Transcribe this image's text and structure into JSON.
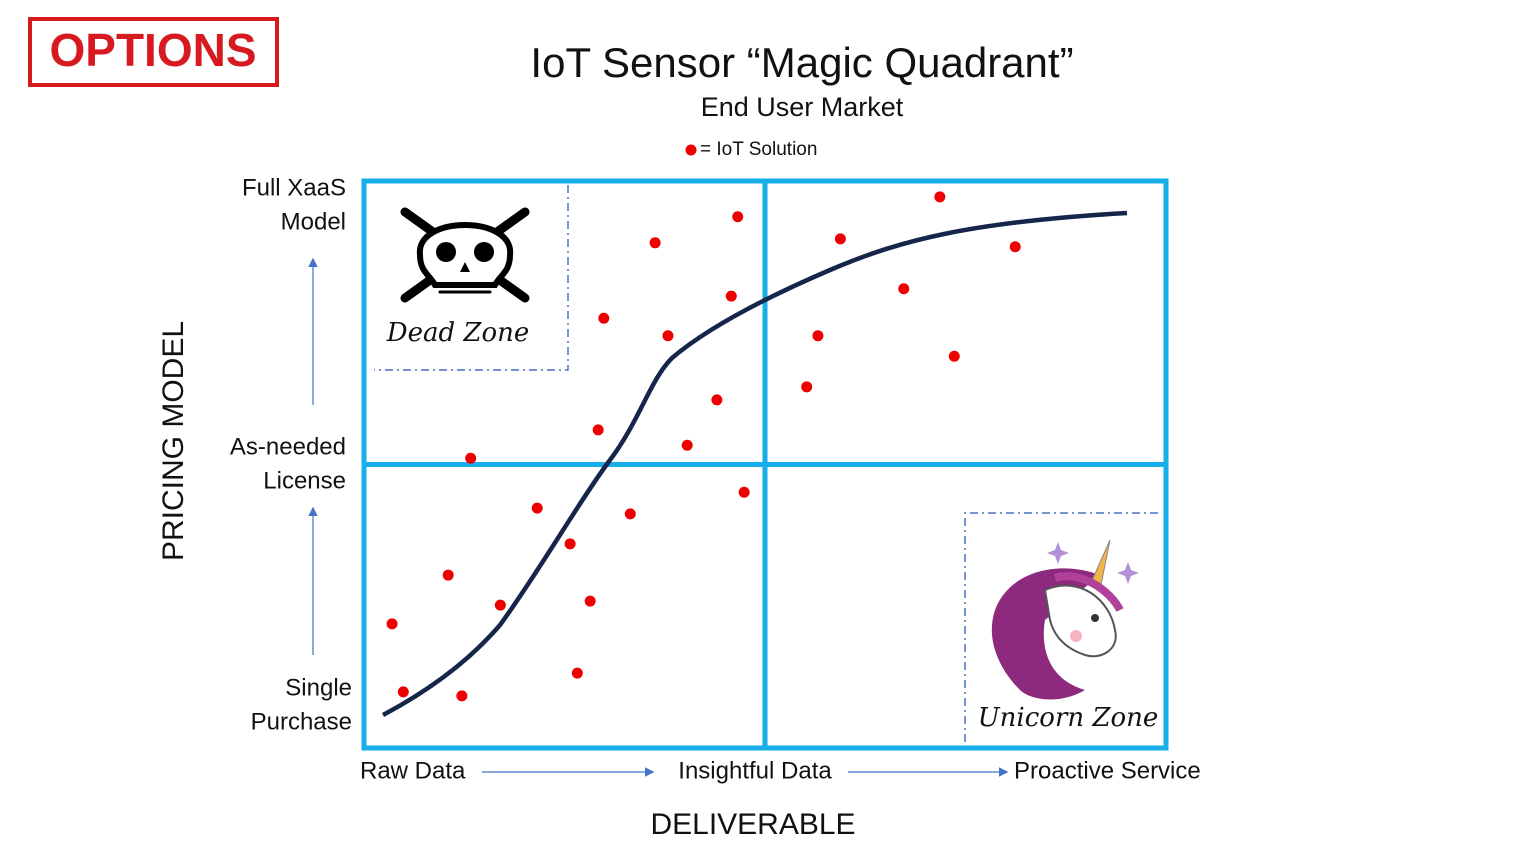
{
  "logo": "OPTIONS",
  "chart_data": {
    "type": "scatter",
    "title": "IoT Sensor “Magic Quadrant”",
    "subtitle": "End User Market",
    "x_label": "DELIVERABLE",
    "y_label": "PRICING MODEL",
    "x_categories": [
      "Raw Data",
      "Insightful Data",
      "Proactive Service"
    ],
    "y_categories": [
      [
        "Single",
        "Purchase"
      ],
      [
        "As-needed",
        "License"
      ],
      [
        "Full XaaS",
        "Model"
      ]
    ],
    "zones": [
      "Dead Zone",
      "Unicorn Zone"
    ],
    "xlim": [
      0,
      100
    ],
    "ylim": [
      0,
      100
    ],
    "series": [
      {
        "name": "= IoT Solution",
        "color": "#ee0000",
        "x": [
          46.6,
          36.3,
          45.8,
          29.9,
          37.9,
          44.0,
          29.2,
          40.3,
          13.3,
          47.4,
          21.6,
          33.2,
          25.7,
          10.5,
          17.0,
          28.2,
          3.5,
          26.6,
          4.9,
          12.2,
          71.8,
          59.4,
          81.2,
          67.3,
          56.6,
          73.6,
          55.2
        ],
        "y": [
          93.7,
          89.1,
          79.7,
          75.8,
          72.7,
          61.4,
          56.1,
          53.4,
          51.1,
          45.1,
          42.3,
          41.3,
          36.0,
          30.5,
          25.2,
          25.9,
          21.9,
          13.2,
          9.9,
          9.2,
          97.2,
          89.8,
          88.4,
          81.0,
          72.7,
          69.1,
          63.7
        ]
      }
    ]
  }
}
